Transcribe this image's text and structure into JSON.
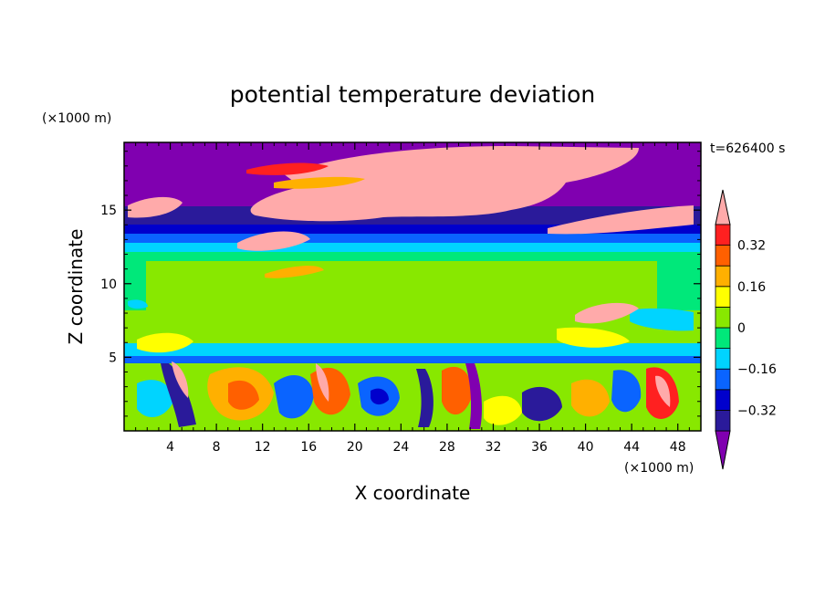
{
  "chart_data": {
    "type": "heatmap",
    "title": "potential temperature deviation",
    "xlabel": "X coordinate",
    "ylabel": "Z coordinate",
    "x_unit_label": "(×1000 m)",
    "y_unit_label": "(×1000 m)",
    "time_label": "t=626400 s",
    "xlim": [
      0,
      50
    ],
    "ylim": [
      0,
      19.6
    ],
    "x_ticks": [
      4,
      8,
      12,
      16,
      20,
      24,
      28,
      32,
      36,
      40,
      44,
      48
    ],
    "y_ticks": [
      5,
      10,
      15
    ],
    "colorbar": {
      "levels": [
        -0.4,
        -0.32,
        -0.24,
        -0.16,
        -0.08,
        0,
        0.08,
        0.16,
        0.24,
        0.32,
        0.4
      ],
      "labeled_levels": [
        0.32,
        0.16,
        0,
        -0.16,
        -0.32
      ],
      "colors_low_to_high": [
        "#8000b0",
        "#2a1a9a",
        "#0000cc",
        "#0a64ff",
        "#00d4ff",
        "#00e87a",
        "#88e800",
        "#ffff00",
        "#ffb000",
        "#ff6000",
        "#ff2020",
        "#ffaaaa"
      ]
    }
  }
}
